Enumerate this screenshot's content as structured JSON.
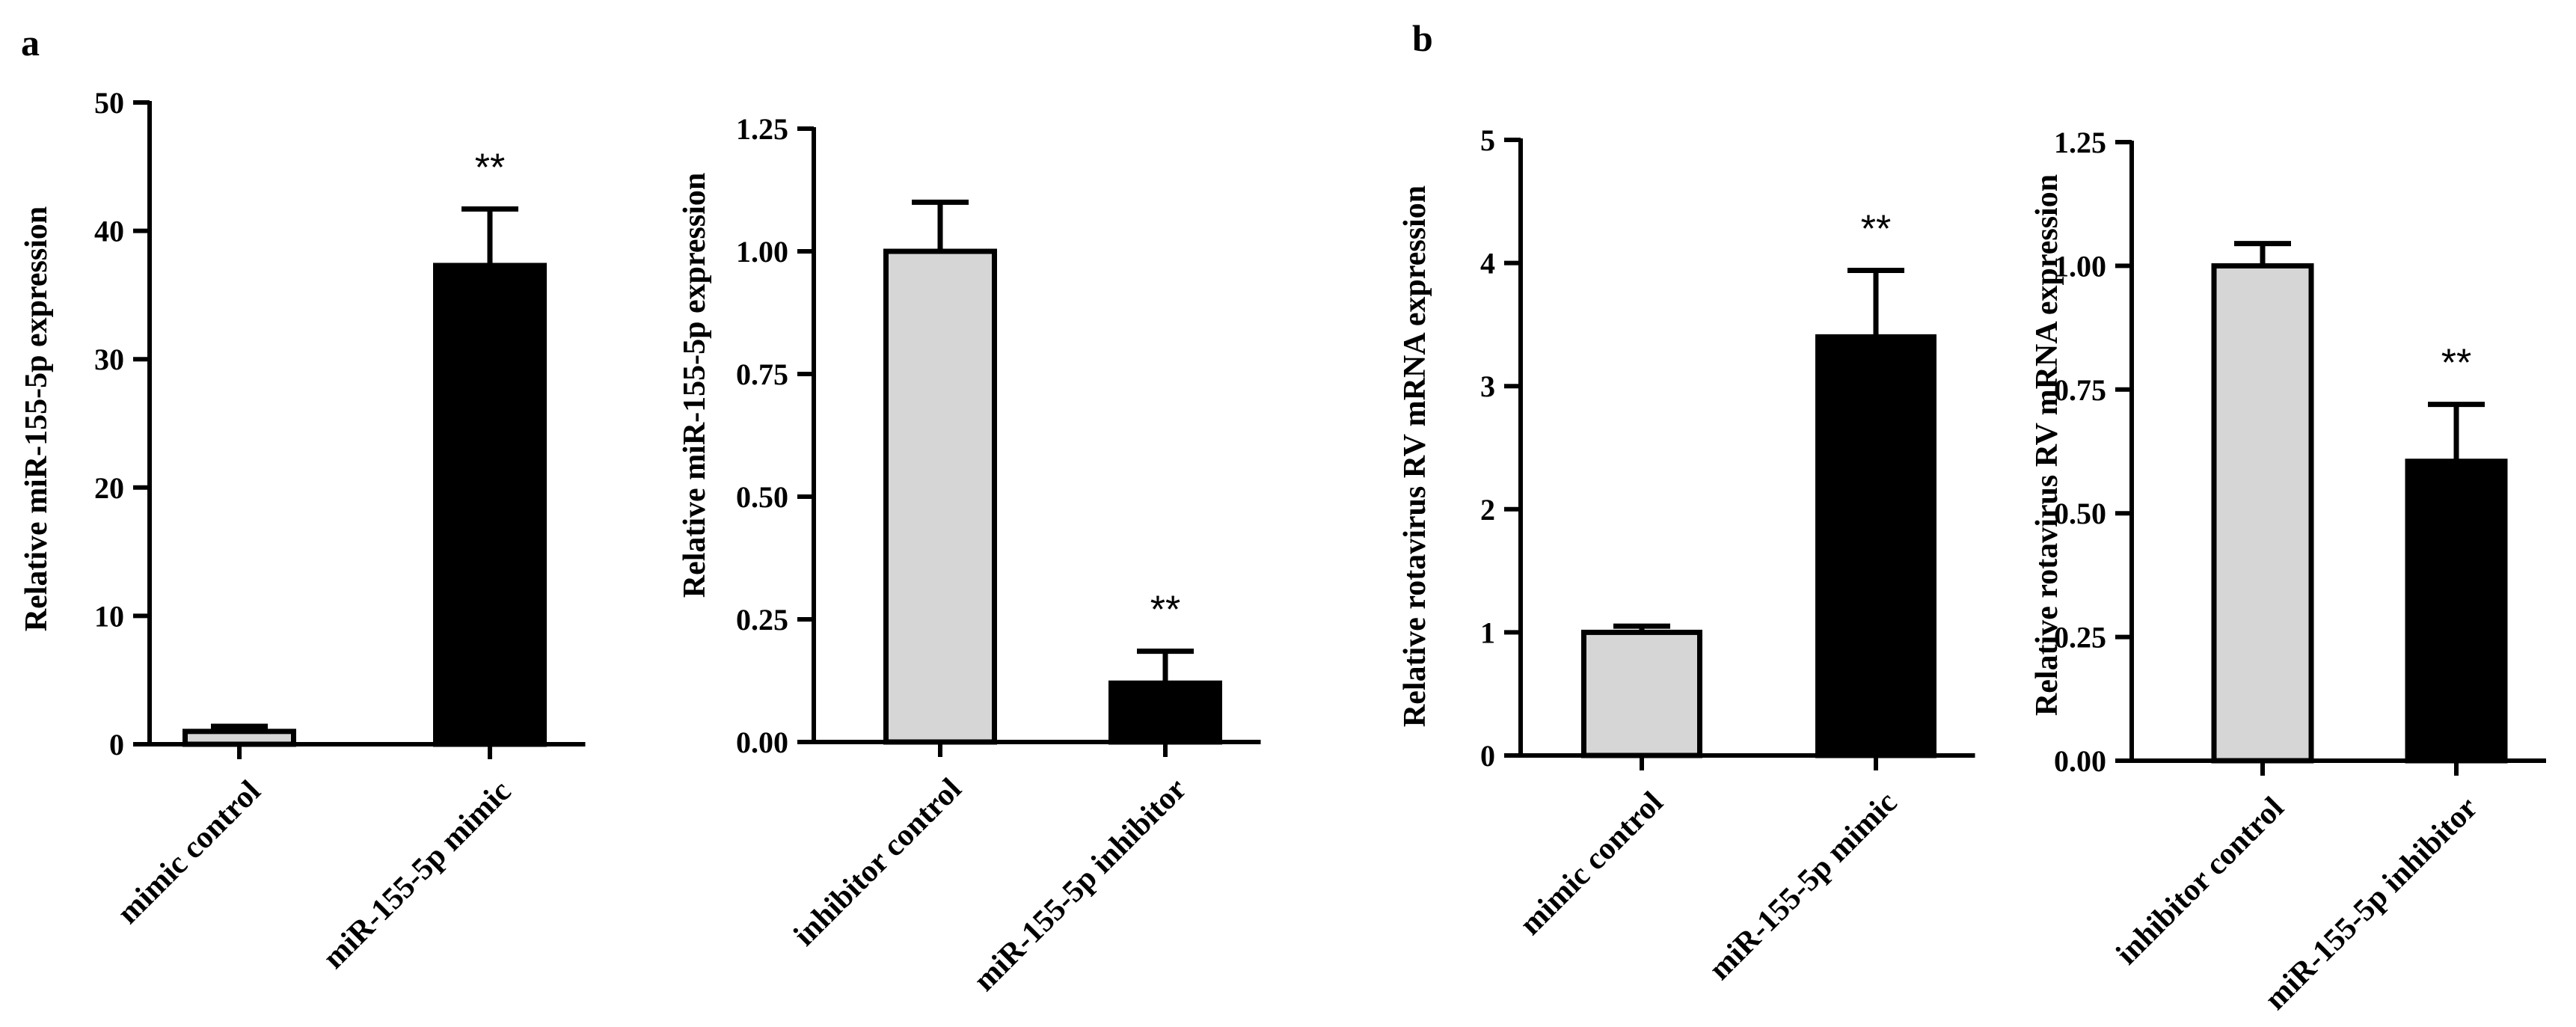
{
  "panel_labels": [
    "a",
    "b"
  ],
  "colors": {
    "control": "#d6d6d6",
    "treatment": "#000000",
    "axis": "#000000"
  },
  "chart_data": [
    {
      "type": "bar",
      "panel": "a",
      "title": "",
      "xlabel": "",
      "ylabel": "Relative miR-155-5p expression",
      "categories": [
        "mimic control",
        "miR-155-5p mimic"
      ],
      "values": [
        1.0,
        37.3
      ],
      "errors": [
        0.4,
        4.4
      ],
      "significance": [
        "",
        "**"
      ],
      "ylim": [
        0,
        50
      ],
      "yticks": [
        0,
        10,
        20,
        30,
        40,
        50
      ],
      "ytick_labels": [
        "0",
        "10",
        "20",
        "30",
        "40",
        "50"
      ]
    },
    {
      "type": "bar",
      "panel": "a",
      "title": "",
      "xlabel": "",
      "ylabel": "Relative miR-155-5p expression",
      "categories": [
        "inhibitor control",
        "miR-155-5p inhibitor"
      ],
      "values": [
        1.0,
        0.12
      ],
      "errors": [
        0.1,
        0.065
      ],
      "significance": [
        "",
        "**"
      ],
      "ylim": [
        0,
        1.25
      ],
      "yticks": [
        0,
        0.25,
        0.5,
        0.75,
        1.0,
        1.25
      ],
      "ytick_labels": [
        "0.00",
        "0.25",
        "0.50",
        "0.75",
        "1.00",
        "1.25"
      ]
    },
    {
      "type": "bar",
      "panel": "b",
      "title": "",
      "xlabel": "",
      "ylabel": "Relative rotavirus RV mRNA expression",
      "categories": [
        "mimic control",
        "miR-155-5p mimic"
      ],
      "values": [
        1.0,
        3.4
      ],
      "errors": [
        0.05,
        0.54
      ],
      "significance": [
        "",
        "**"
      ],
      "ylim": [
        0,
        5
      ],
      "yticks": [
        0,
        1,
        2,
        3,
        4,
        5
      ],
      "ytick_labels": [
        "0",
        "1",
        "2",
        "3",
        "4",
        "5"
      ]
    },
    {
      "type": "bar",
      "panel": "b",
      "title": "",
      "xlabel": "",
      "ylabel": "Relative rotavirus RV mRNA expression",
      "categories": [
        "inhibitor control",
        "miR-155-5p inhibitor"
      ],
      "values": [
        1.0,
        0.605
      ],
      "errors": [
        0.045,
        0.115
      ],
      "significance": [
        "",
        "**"
      ],
      "ylim": [
        0,
        1.25
      ],
      "yticks": [
        0,
        0.25,
        0.5,
        0.75,
        1.0,
        1.25
      ],
      "ytick_labels": [
        "0.00",
        "0.25",
        "0.50",
        "0.75",
        "1.00",
        "1.25"
      ]
    }
  ]
}
